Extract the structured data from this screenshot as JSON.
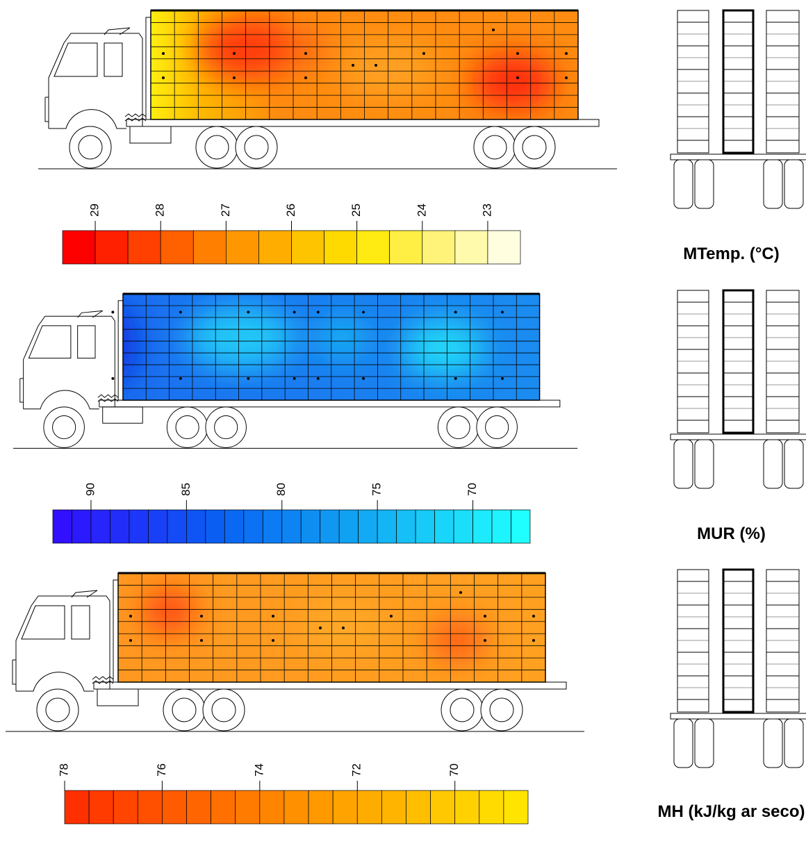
{
  "chart_data": [
    {
      "type": "heatmap",
      "title": "MTemp. (°C)",
      "xlim": [
        29.5,
        22.5
      ],
      "xticks": [
        29,
        28,
        27,
        26,
        25,
        24,
        23
      ],
      "levels": 14,
      "colors": [
        "#ff0000",
        "#ff8a00",
        "#ffe800",
        "#ffffe0"
      ]
    },
    {
      "type": "heatmap",
      "title": "MUR (%)",
      "xlim": [
        92,
        67
      ],
      "xticks": [
        90,
        85,
        80,
        75,
        70
      ],
      "levels": 25,
      "colors": [
        "#3010ff",
        "#0a5ef2",
        "#12aaf2",
        "#20ffff"
      ]
    },
    {
      "type": "heatmap",
      "title": "MH (kJ/kg ar seco)",
      "xlim": [
        78,
        68.5
      ],
      "xticks": [
        78,
        76,
        74,
        72,
        70
      ],
      "levels": 19,
      "colors": [
        "#ff3000",
        "#ff9000",
        "#ffe400"
      ]
    }
  ]
}
